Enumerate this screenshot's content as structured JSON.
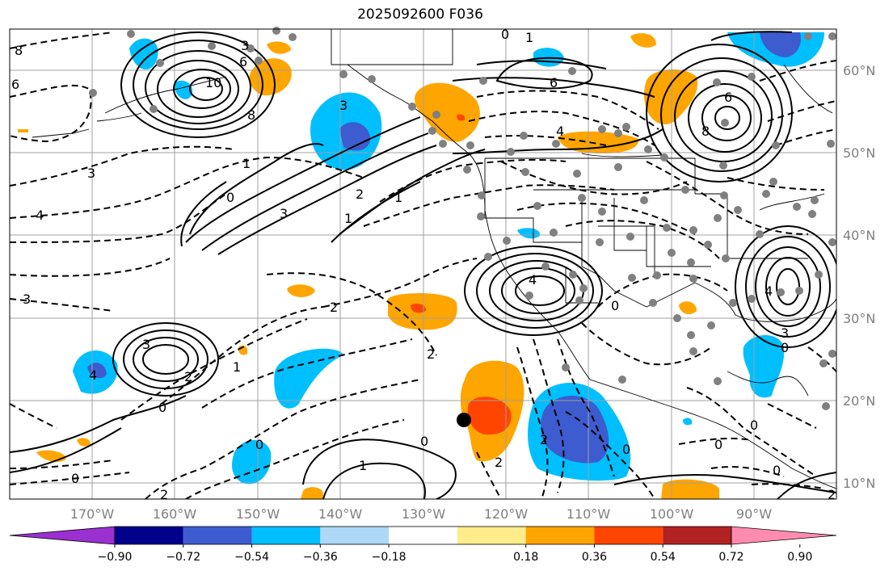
{
  "title": "2025092600 F036",
  "lat_labels": [
    "60°N",
    "50°N",
    "40°N",
    "30°N",
    "20°N",
    "10°N"
  ],
  "lon_labels": [
    "170°W",
    "160°W",
    "150°W",
    "140°W",
    "130°W",
    "120°W",
    "110°W",
    "100°W",
    "90°W"
  ],
  "colorbar": {
    "ticks": [
      "−0.90",
      "−0.72",
      "−0.54",
      "−0.36",
      "−0.18",
      "0.18",
      "0.36",
      "0.54",
      "0.72",
      "0.90"
    ],
    "colors": [
      "#9b30d0",
      "#00008b",
      "#3d5ccf",
      "#00bfff",
      "#add8f6",
      "#ffffff",
      "#ffec8b",
      "#ffa500",
      "#ff4500",
      "#b22222",
      "#ff8cb0"
    ]
  },
  "contour_labels": [
    "8",
    "6",
    "3",
    "6",
    "10",
    "8",
    "6",
    "0",
    "1",
    "3",
    "4",
    "3",
    "6",
    "8",
    "4",
    "4",
    "2",
    "1",
    "2",
    "1",
    "0",
    "1",
    "3",
    "2",
    "4",
    "3",
    "4",
    "3",
    "2",
    "2",
    "3",
    "1",
    "0",
    "2",
    "0",
    "0",
    "0",
    "1",
    "0",
    "2",
    "2",
    "0",
    "0",
    "0",
    "0",
    "0"
  ],
  "marker": "storm-center-marker",
  "colors": {
    "grid": "#a0a0a0",
    "label": "#7f7f7f",
    "contour": "#000000",
    "station": "#808080"
  }
}
